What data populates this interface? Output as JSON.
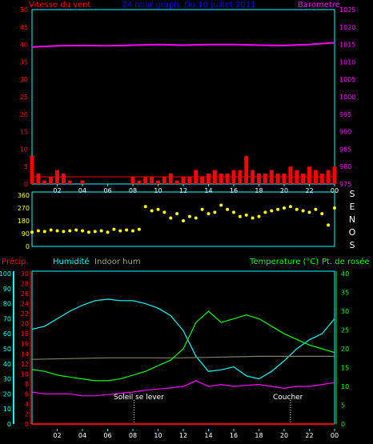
{
  "colors": {
    "wind": "#ff0000",
    "gust": "#ffffff",
    "gust2": "#ffff66",
    "baro": "#ff00ff",
    "title": "#0000ff",
    "dir": "#ffff00",
    "precip": "#ff0000",
    "hum": "#00ffff",
    "indoor": "#808060",
    "temp": "#00ff00",
    "dew": "#ff00ff",
    "axis": "#00ffff",
    "rain_axis": "#ff0000",
    "hum_axis": "#00ffff",
    "temp_axis": "#00ff00",
    "sun": "#ffffff"
  },
  "top": {
    "title": "24 hour graph, Du 10 Juillet 2011",
    "left_label": "Vitesse du vent",
    "right_label": "Barometre",
    "left_ticks": [
      "50",
      "45",
      "40",
      "35",
      "30",
      "25",
      "20",
      "15",
      "10",
      "5",
      "0"
    ],
    "right_ticks": [
      "1025",
      "1020",
      "1015",
      "1010",
      "1005",
      "1000",
      "995",
      "990",
      "985",
      "980",
      "975"
    ]
  },
  "mid": {
    "left_ticks": [
      "360",
      "270",
      "180",
      "90",
      "0"
    ],
    "compass": [
      "S",
      "E",
      "N",
      "O",
      "S"
    ]
  },
  "bottom": {
    "precip_label": "Précip.",
    "hum_label": "Humidité",
    "indoor_label": "Indoor hum",
    "temp_label": "Temperature (°C)",
    "dew_label": "Pt. de rosée",
    "hum_ticks": [
      "100",
      "90",
      "80",
      "70",
      "60",
      "50",
      "40",
      "30",
      "20",
      "10",
      "0"
    ],
    "rain_ticks": [
      "30",
      "28",
      "26",
      "24",
      "22",
      "20",
      "18",
      "16",
      "14",
      "12",
      "10",
      "8",
      "6",
      "4",
      "2",
      "0"
    ],
    "temp_ticks": [
      "40",
      "35",
      "30",
      "25",
      "20",
      "15",
      "10",
      "5",
      "0"
    ],
    "sunrise": "Soleil se lever",
    "sunset": "Coucher"
  },
  "x_ticks": [
    "02",
    "04",
    "06",
    "08",
    "10",
    "12",
    "14",
    "16",
    "18",
    "20",
    "22",
    "00"
  ],
  "chart_data": [
    {
      "type": "line",
      "title": "24 hour graph, Du 10 Juillet 2011",
      "x_unit": "hour",
      "series": [
        {
          "name": "Barometre",
          "axis": "right",
          "ylim": [
            975,
            1025
          ],
          "x": [
            0,
            2,
            4,
            6,
            8,
            10,
            12,
            14,
            16,
            18,
            20,
            22,
            24
          ],
          "values": [
            1014.3,
            1014.6,
            1014.7,
            1014.6,
            1014.8,
            1015.0,
            1014.8,
            1015.0,
            1015.0,
            1014.8,
            1014.7,
            1015.0,
            1015.5
          ]
        },
        {
          "name": "Vitesse du vent",
          "axis": "left",
          "ylim": [
            0,
            50
          ],
          "x": [
            0,
            0.5,
            1,
            1.5,
            2,
            2.5,
            3,
            3.5,
            4,
            4.5,
            5,
            5.5,
            6,
            6.5,
            7,
            7.5,
            8,
            8.5,
            9,
            9.5,
            10,
            10.5,
            11,
            11.5,
            12,
            12.5,
            13,
            13.5,
            14,
            14.5,
            15,
            15.5,
            16,
            16.5,
            17,
            17.5,
            18,
            18.5,
            19,
            19.5,
            20,
            20.5,
            21,
            21.5,
            22,
            22.5,
            23,
            23.5,
            24
          ],
          "values": [
            8,
            3,
            1,
            2,
            4,
            3,
            1,
            0,
            1,
            0,
            0,
            0,
            0,
            0,
            0,
            0,
            2,
            1,
            2,
            2,
            1,
            2,
            3,
            1,
            2,
            2,
            4,
            2,
            3,
            4,
            3,
            3,
            4,
            4,
            8,
            4,
            3,
            3,
            4,
            3,
            3,
            5,
            4,
            3,
            5,
            4,
            3,
            4,
            5
          ]
        }
      ]
    },
    {
      "type": "scatter",
      "series": [
        {
          "name": "wind_dir",
          "ylim": [
            0,
            360
          ],
          "x": [
            0,
            0.5,
            1,
            1.5,
            2,
            2.5,
            3,
            3.5,
            4,
            4.5,
            5,
            5.5,
            6,
            6.5,
            7,
            7.5,
            8,
            8.5,
            9,
            9.5,
            10,
            10.5,
            11,
            11.5,
            12,
            12.5,
            13,
            13.5,
            14,
            14.5,
            15,
            15.5,
            16,
            16.5,
            17,
            17.5,
            18,
            18.5,
            19,
            19.5,
            20,
            20.5,
            21,
            21.5,
            22,
            22.5,
            23,
            23.5,
            24
          ],
          "values": [
            100,
            110,
            105,
            115,
            110,
            105,
            110,
            115,
            110,
            100,
            105,
            110,
            100,
            120,
            110,
            115,
            110,
            120,
            280,
            250,
            260,
            240,
            200,
            230,
            180,
            210,
            200,
            260,
            230,
            240,
            290,
            260,
            240,
            210,
            220,
            200,
            210,
            240,
            250,
            260,
            270,
            280,
            260,
            250,
            240,
            260,
            230,
            150,
            270
          ]
        }
      ]
    },
    {
      "type": "line",
      "x_unit": "hour",
      "series": [
        {
          "name": "Humidité",
          "axis": "humidity",
          "ylim": [
            0,
            100
          ],
          "x": [
            0,
            1,
            2,
            3,
            4,
            5,
            6,
            7,
            8,
            9,
            10,
            11,
            12,
            13,
            14,
            15,
            16,
            17,
            18,
            19,
            20,
            21,
            22,
            23,
            24
          ],
          "values": [
            63,
            65,
            70,
            75,
            79,
            82,
            83,
            82,
            82,
            80,
            77,
            72,
            62,
            45,
            35,
            36,
            38,
            32,
            30,
            35,
            42,
            50,
            56,
            60,
            70
          ]
        },
        {
          "name": "Indoor hum",
          "axis": "humidity",
          "ylim": [
            0,
            100
          ],
          "x": [
            0,
            6,
            12,
            18,
            24
          ],
          "values": [
            43,
            44,
            44,
            45,
            45
          ]
        },
        {
          "name": "Temperature (°C)",
          "axis": "temp",
          "ylim": [
            0,
            40
          ],
          "x": [
            0,
            1,
            2,
            3,
            4,
            5,
            6,
            7,
            8,
            9,
            10,
            11,
            12,
            13,
            14,
            15,
            16,
            17,
            18,
            19,
            20,
            21,
            22,
            23,
            24
          ],
          "values": [
            14.5,
            14,
            13,
            12.5,
            12,
            11.5,
            11.5,
            12,
            13,
            14,
            15.5,
            17,
            20,
            27,
            30,
            27,
            28,
            29,
            28,
            26,
            24,
            22.5,
            21,
            20,
            19
          ]
        },
        {
          "name": "Pt. de rosée",
          "axis": "temp",
          "ylim": [
            0,
            40
          ],
          "x": [
            0,
            1,
            2,
            3,
            4,
            5,
            6,
            7,
            8,
            9,
            10,
            11,
            12,
            13,
            14,
            15,
            16,
            17,
            18,
            19,
            20,
            21,
            22,
            23,
            24
          ],
          "values": [
            8.5,
            8,
            8,
            8,
            7.5,
            7.5,
            7.8,
            8.2,
            8.5,
            9,
            9.3,
            9.6,
            10,
            11.5,
            10,
            10.5,
            10,
            10.3,
            10.5,
            10,
            9.5,
            10,
            10,
            10.5,
            11
          ]
        },
        {
          "name": "Précip.",
          "axis": "rain",
          "ylim": [
            0,
            30
          ],
          "x": [
            0,
            24
          ],
          "values": [
            0,
            0
          ]
        }
      ]
    }
  ]
}
